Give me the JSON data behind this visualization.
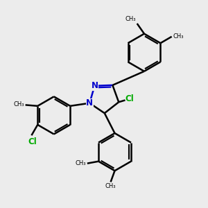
{
  "bg_color": "#ececec",
  "bond_color": "#000000",
  "nitrogen_color": "#0000cc",
  "chlorine_color": "#00aa00",
  "line_width": 1.8,
  "figsize": [
    3.0,
    3.0
  ],
  "dpi": 100,
  "xlim": [
    0,
    10
  ],
  "ylim": [
    0,
    10
  ]
}
